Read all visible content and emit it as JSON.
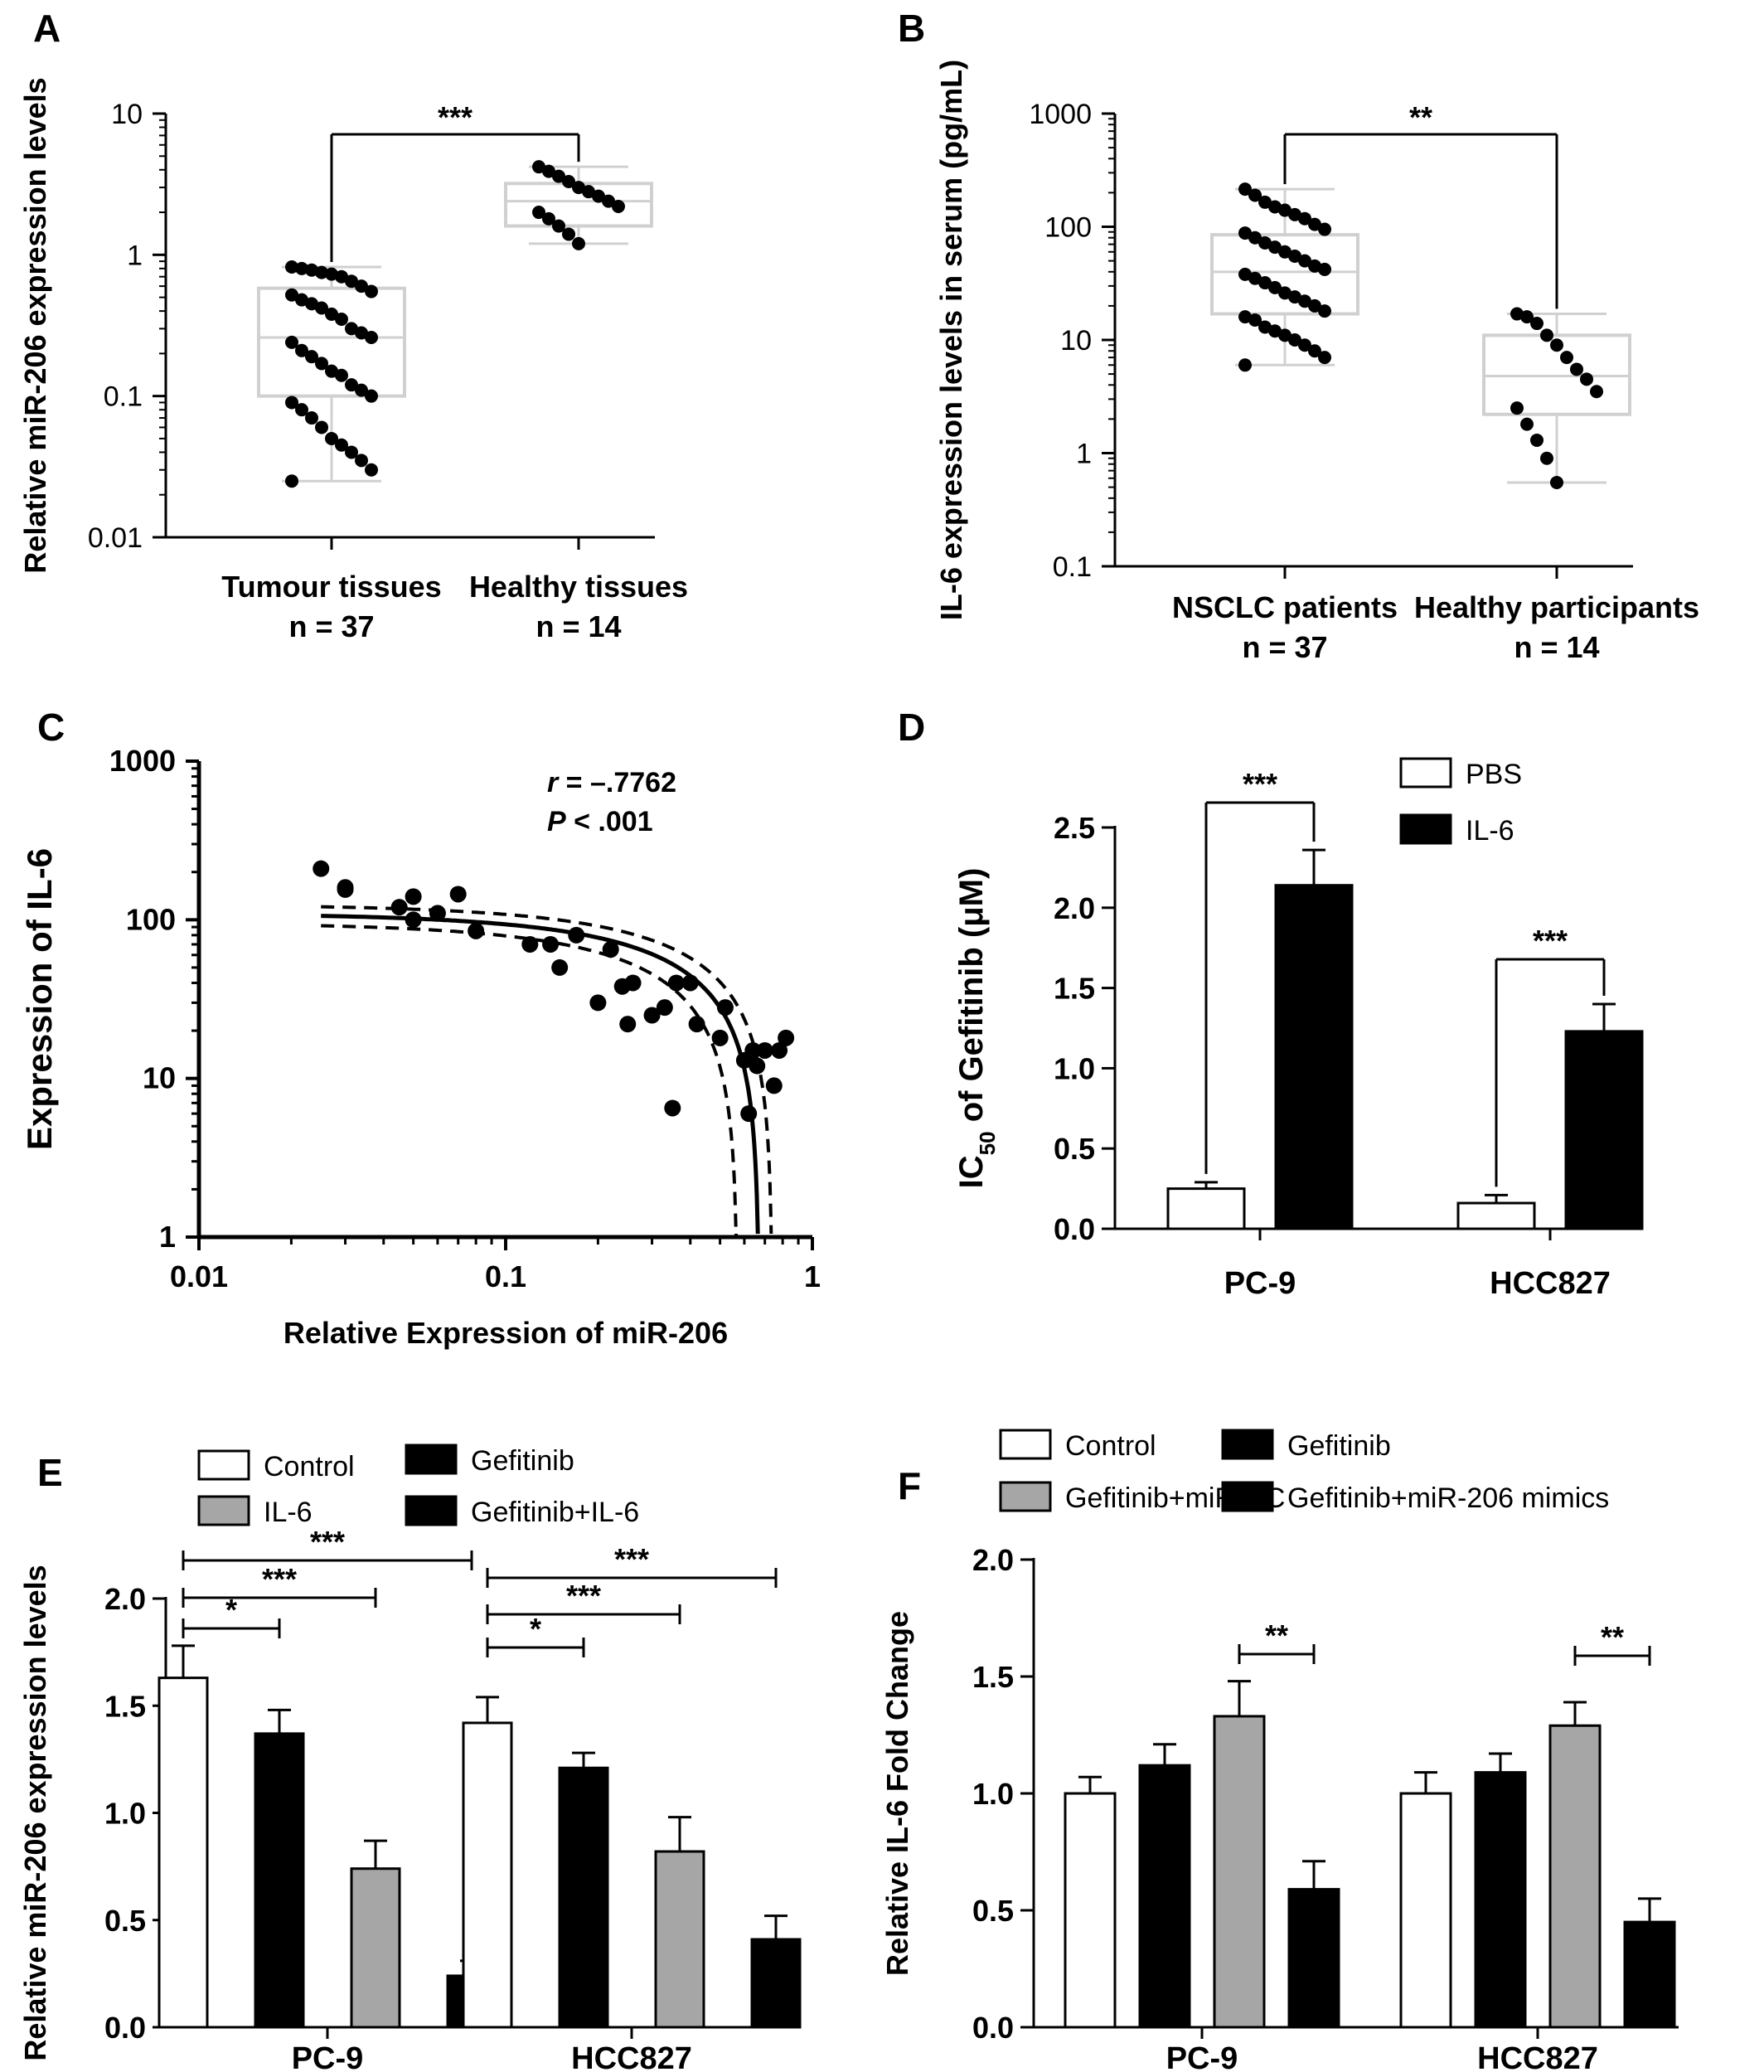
{
  "chart_data": [
    {
      "panel": "A",
      "type": "box",
      "ylabel": "Relative miR-206 expression levels",
      "yscale": "log",
      "ylim": [
        0.01,
        10
      ],
      "yticks": [
        "10",
        "1",
        "0.1",
        "0.01"
      ],
      "categories": [
        "Tumour tissues",
        "Healthy tissues"
      ],
      "n_labels": [
        "n = 37",
        "n = 14"
      ],
      "boxes": [
        {
          "min": 0.025,
          "q1": 0.1,
          "median": 0.26,
          "q3": 0.58,
          "max": 0.82,
          "points": [
            0.82,
            0.8,
            0.78,
            0.75,
            0.73,
            0.7,
            0.65,
            0.6,
            0.55,
            0.52,
            0.48,
            0.45,
            0.42,
            0.38,
            0.35,
            0.3,
            0.28,
            0.26,
            0.24,
            0.21,
            0.19,
            0.17,
            0.15,
            0.14,
            0.12,
            0.11,
            0.1,
            0.09,
            0.08,
            0.07,
            0.06,
            0.05,
            0.045,
            0.04,
            0.035,
            0.03,
            0.025
          ]
        },
        {
          "min": 1.2,
          "q1": 1.6,
          "median": 2.4,
          "q3": 3.2,
          "max": 4.2,
          "points": [
            4.2,
            3.9,
            3.6,
            3.3,
            3.0,
            2.8,
            2.6,
            2.4,
            2.2,
            2.0,
            1.8,
            1.6,
            1.4,
            1.2
          ]
        }
      ],
      "significance": [
        {
          "between": [
            0,
            1
          ],
          "label": "***"
        }
      ]
    },
    {
      "panel": "B",
      "type": "box",
      "ylabel": "IL-6 expression levels in serum (pg/mL)",
      "yscale": "log",
      "ylim": [
        0.1,
        1000
      ],
      "yticks": [
        "1000",
        "100",
        "10",
        "1",
        "0.1"
      ],
      "categories": [
        "NSCLC patients",
        "Healthy participants"
      ],
      "n_labels": [
        "n = 37",
        "n = 14"
      ],
      "boxes": [
        {
          "min": 6,
          "q1": 17,
          "median": 40,
          "q3": 85,
          "max": 215,
          "points": [
            215,
            190,
            165,
            150,
            140,
            128,
            118,
            105,
            95,
            88,
            80,
            72,
            66,
            60,
            55,
            50,
            45,
            42,
            38,
            35,
            32,
            29,
            26,
            24,
            22,
            20,
            18,
            16,
            15,
            13,
            12,
            11,
            10,
            9,
            8,
            7,
            6
          ]
        },
        {
          "min": 0.55,
          "q1": 2.2,
          "median": 4.8,
          "q3": 11,
          "max": 17,
          "points": [
            17,
            16,
            14,
            11,
            9,
            7,
            5.5,
            4.5,
            3.5,
            2.5,
            1.8,
            1.3,
            0.9,
            0.55
          ]
        }
      ],
      "significance": [
        {
          "between": [
            0,
            1
          ],
          "label": "**"
        }
      ]
    },
    {
      "panel": "C",
      "type": "scatter",
      "xlabel": "Relative Expression of miR-206",
      "ylabel": "Expression of IL-6",
      "xscale": "log",
      "yscale": "log",
      "xlim": [
        0.01,
        1
      ],
      "ylim": [
        1,
        1000
      ],
      "xticks": [
        "0.01",
        "0.1",
        "1"
      ],
      "yticks": [
        "1000",
        "100",
        "10",
        "1"
      ],
      "annotation": {
        "r_label": "r",
        "r_value": " = –.7762",
        "p_label": "P",
        "p_value": " < .001"
      },
      "points": [
        [
          0.025,
          210
        ],
        [
          0.03,
          160
        ],
        [
          0.03,
          155
        ],
        [
          0.045,
          120
        ],
        [
          0.05,
          140
        ],
        [
          0.05,
          100
        ],
        [
          0.06,
          110
        ],
        [
          0.07,
          145
        ],
        [
          0.08,
          85
        ],
        [
          0.12,
          70
        ],
        [
          0.14,
          70
        ],
        [
          0.15,
          50
        ],
        [
          0.17,
          80
        ],
        [
          0.2,
          30
        ],
        [
          0.22,
          65
        ],
        [
          0.24,
          38
        ],
        [
          0.25,
          22
        ],
        [
          0.26,
          40
        ],
        [
          0.3,
          25
        ],
        [
          0.33,
          28
        ],
        [
          0.35,
          6.5
        ],
        [
          0.36,
          40
        ],
        [
          0.4,
          40
        ],
        [
          0.42,
          22
        ],
        [
          0.5,
          18
        ],
        [
          0.52,
          28
        ],
        [
          0.6,
          13
        ],
        [
          0.62,
          6
        ],
        [
          0.64,
          15
        ],
        [
          0.66,
          12
        ],
        [
          0.7,
          15
        ],
        [
          0.75,
          9
        ],
        [
          0.78,
          15
        ],
        [
          0.82,
          18
        ]
      ],
      "fit": {
        "k": 110,
        "x0": 0.67
      },
      "ci_upper": {
        "k": 125,
        "x0": 0.74
      },
      "ci_lower": {
        "k": 96,
        "x0": 0.57
      }
    },
    {
      "panel": "D",
      "type": "bar",
      "ylabel": "IC50 of Gefitinib (μM)",
      "ylabel_parts": [
        "IC",
        "50",
        " of Gefitinib  (μM)"
      ],
      "ylim": [
        0,
        2.5
      ],
      "yticks": [
        "0.0",
        "0.5",
        "1.0",
        "1.5",
        "2.0",
        "2.5"
      ],
      "categories": [
        "PC-9",
        "HCC827"
      ],
      "series": [
        {
          "name": "PBS",
          "color": "#ffffff",
          "values": [
            0.25,
            0.16
          ],
          "errors": [
            0.04,
            0.05
          ]
        },
        {
          "name": "IL-6",
          "color": "#000000",
          "values": [
            2.14,
            1.23
          ],
          "errors": [
            0.22,
            0.17
          ]
        }
      ],
      "significance": [
        {
          "group": 0,
          "label": "***"
        },
        {
          "group": 1,
          "label": "***"
        }
      ]
    },
    {
      "panel": "E",
      "type": "bar",
      "ylabel": "Relative miR-206 expression levels",
      "ylim": [
        0,
        2.0
      ],
      "yticks": [
        "0.0",
        "0.5",
        "1.0",
        "1.5",
        "2.0"
      ],
      "categories": [
        "PC-9",
        "HCC827"
      ],
      "series": [
        {
          "name": "Control",
          "color": "#ffffff",
          "values": [
            1.63,
            1.42
          ],
          "errors": [
            0.15,
            0.12
          ]
        },
        {
          "name": "Gefitinib",
          "color": "#000000",
          "values": [
            1.37,
            1.21
          ],
          "errors": [
            0.11,
            0.07
          ]
        },
        {
          "name": "IL-6",
          "color": "#a6a6a6",
          "values": [
            0.74,
            0.82
          ],
          "errors": [
            0.13,
            0.16
          ]
        },
        {
          "name": "Gefitinib+IL-6",
          "color": "#000000",
          "values": [
            0.24,
            0.41
          ],
          "errors": [
            0.07,
            0.11
          ]
        }
      ],
      "significance": [
        {
          "group": 0,
          "from": 0,
          "to": 1,
          "label": "*"
        },
        {
          "group": 0,
          "from": 0,
          "to": 2,
          "label": "***"
        },
        {
          "group": 0,
          "from": 0,
          "to": 3,
          "label": "***"
        },
        {
          "group": 1,
          "from": 0,
          "to": 1,
          "label": "*"
        },
        {
          "group": 1,
          "from": 0,
          "to": 2,
          "label": "***"
        },
        {
          "group": 1,
          "from": 0,
          "to": 3,
          "label": "***"
        }
      ]
    },
    {
      "panel": "F",
      "type": "bar",
      "ylabel": "Relative IL-6  Fold Change",
      "ylim": [
        0,
        2.0
      ],
      "yticks": [
        "0.0",
        "0.5",
        "1.0",
        "1.5",
        "2.0"
      ],
      "categories": [
        "PC-9",
        "HCC827"
      ],
      "series": [
        {
          "name": "Control",
          "color": "#ffffff",
          "values": [
            1.0,
            1.0
          ],
          "errors": [
            0.07,
            0.09
          ]
        },
        {
          "name": "Gefitinib",
          "color": "#000000",
          "values": [
            1.12,
            1.09
          ],
          "errors": [
            0.09,
            0.08
          ]
        },
        {
          "name": "Gefitinib+miR-NC",
          "color": "#a6a6a6",
          "values": [
            1.33,
            1.29
          ],
          "errors": [
            0.15,
            0.1
          ]
        },
        {
          "name": "Gefitinib+miR-206 mimics",
          "color": "#000000",
          "values": [
            0.59,
            0.45
          ],
          "errors": [
            0.12,
            0.1
          ]
        }
      ],
      "significance": [
        {
          "group": 0,
          "from": 2,
          "to": 3,
          "label": "**"
        },
        {
          "group": 1,
          "from": 2,
          "to": 3,
          "label": "**"
        }
      ]
    }
  ]
}
